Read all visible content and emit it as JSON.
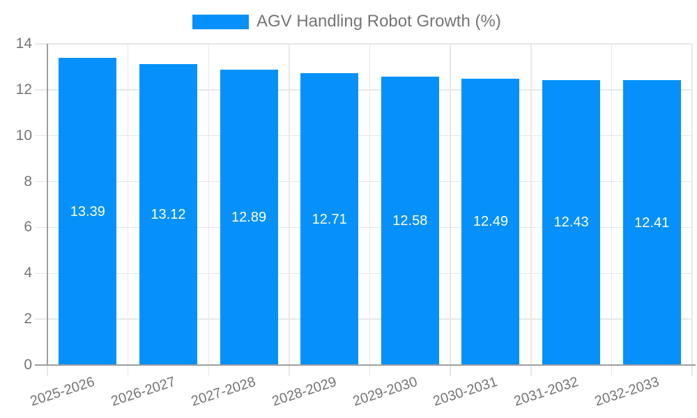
{
  "chart_data": {
    "type": "bar",
    "title": "AGV Handling Robot Growth (%)",
    "legend": [
      "AGV Handling Robot Growth (%)"
    ],
    "legend_position": "top",
    "categories": [
      "2025-2026",
      "2026-2027",
      "2027-2028",
      "2028-2029",
      "2029-2030",
      "2030-2031",
      "2031-2032",
      "2032-2033"
    ],
    "values": [
      13.39,
      13.12,
      12.89,
      12.71,
      12.58,
      12.49,
      12.43,
      12.41
    ],
    "value_labels": [
      "13.39",
      "13.12",
      "12.89",
      "12.71",
      "12.58",
      "12.49",
      "12.43",
      "12.41"
    ],
    "value_label_position": "inside-middle",
    "xlabel": "",
    "ylabel": "",
    "ylim": [
      0,
      14
    ],
    "yticks": [
      "0",
      "2",
      "4",
      "6",
      "8",
      "10",
      "12",
      "14"
    ],
    "grid": true,
    "x_tick_rotation_deg": -18,
    "colors": {
      "bar": "#0591f9",
      "grid": "#e7e7e7",
      "axis": "#9e9e9e",
      "tick_text": "#757575",
      "legend_text": "#757575",
      "value_text": "#ffffff",
      "background": "#ffffff"
    }
  }
}
